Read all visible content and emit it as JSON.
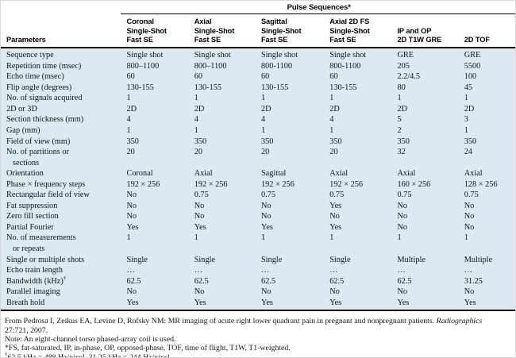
{
  "table": {
    "spanner_title": "Pulse Sequences*",
    "params_header": "Parameters",
    "columns": [
      "Coronal\nSingle-Shot\nFast SE",
      "Axial\nSingle-Shot\nFast SE",
      "Sagittal\nSingle-Shot\nFast SE",
      "Axial 2D FS\nSingle-Shot\nFast SE",
      "IP and OP\n2D T1W GRE",
      "2D TOF"
    ],
    "rows": [
      {
        "param": "Sequence type",
        "values": [
          "Single shot",
          "Single shot",
          "Single shot",
          "Single shot",
          "GRE",
          "GRE"
        ]
      },
      {
        "param": "Repetition time (msec)",
        "values": [
          "800–1100",
          "800–1100",
          "800-1100",
          "800-1100",
          "205",
          "5500"
        ]
      },
      {
        "param": "Echo time (msec)",
        "values": [
          "60",
          "60",
          "60",
          "60",
          "2.2/4.5",
          "100"
        ]
      },
      {
        "param": "Flip angle (degrees)",
        "values": [
          "130-155",
          "130-155",
          "130-155",
          "130-155",
          "80",
          "45"
        ]
      },
      {
        "param": "No. of signals acquired",
        "values": [
          "1",
          "1",
          "1",
          "1",
          "1",
          "1"
        ]
      },
      {
        "param": "2D or 3D",
        "values": [
          "2D",
          "2D",
          "2D",
          "2D",
          "2D",
          "2D"
        ]
      },
      {
        "param": "Section thickness (mm)",
        "values": [
          "4",
          "4",
          "4",
          "4",
          "5",
          "3"
        ]
      },
      {
        "param": "Gap (mm)",
        "values": [
          "1",
          "1",
          "1",
          "1",
          "2",
          "1"
        ]
      },
      {
        "param": "Field of view (mm)",
        "values": [
          "350",
          "350",
          "350",
          "350",
          "350",
          "350"
        ]
      },
      {
        "param": "No. of partitions or",
        "param2": "sections",
        "values": [
          "20",
          "20",
          "20",
          "20",
          "32",
          "24"
        ]
      },
      {
        "param": "Orientation",
        "values": [
          "Coronal",
          "Axial",
          "Sagittal",
          "Axial",
          "Axial",
          "Axial"
        ]
      },
      {
        "param": "Phase × frequency steps",
        "values": [
          "192 × 256",
          "192 × 256",
          "192 × 256",
          "192 × 256",
          "160 × 256",
          "128 × 256"
        ]
      },
      {
        "param": "Rectangular field of view",
        "values": [
          "No",
          "0.75",
          "0.75",
          "0.75",
          "0.75",
          "0.75"
        ]
      },
      {
        "param": "Fat suppression",
        "values": [
          "No",
          "No",
          "No",
          "Yes",
          "No",
          "No"
        ]
      },
      {
        "param": "Zero fill section",
        "values": [
          "No",
          "No",
          "No",
          "No",
          "No",
          "No"
        ]
      },
      {
        "param": "Partial Fourier",
        "values": [
          "Yes",
          "Yes",
          "Yes",
          "Yes",
          "No",
          "No"
        ]
      },
      {
        "param": "No. of measurements",
        "param2": "or repeats",
        "values": [
          "1",
          "1",
          "1",
          "1",
          "1",
          "1"
        ]
      },
      {
        "param": "Single or multiple shots",
        "values": [
          "Single",
          "Single",
          "Single",
          "Single",
          "Multiple",
          "Multiple"
        ]
      },
      {
        "param": "Echo train length",
        "values": [
          "…",
          "…",
          "…",
          "…",
          "…",
          "…"
        ]
      },
      {
        "param": "Bandwidth (kHz)",
        "param_sup": "†",
        "values": [
          "62.5",
          "62.5",
          "62.5",
          "62.5",
          "62.5",
          "31.25"
        ]
      },
      {
        "param": "Parallel imaging",
        "values": [
          "No",
          "No",
          "No",
          "No",
          "No",
          "No"
        ]
      },
      {
        "param": "Breath hold",
        "values": [
          "Yes",
          "Yes",
          "Yes",
          "Yes",
          "Yes",
          "Yes"
        ]
      }
    ]
  },
  "footnotes": [
    {
      "sup": "",
      "pre": "From Pedrosa I, Zeikus EA, Levine D, Rofsky NM: MR imaging of acute right lower quadrant pain in pregnant and nonpregnant patients. ",
      "italic": "Radiographics",
      "post": ""
    },
    {
      "sup": "",
      "pre": "27:721, 2007.",
      "italic": "",
      "post": ""
    },
    {
      "sup": "",
      "pre": "Note: An eight-channel torso phased-array coil is used.",
      "italic": "",
      "post": ""
    },
    {
      "sup": "",
      "pre": "*FS, fat-saturated, IP, in-phase, OP, opposed-phase, TOF, time of flight, T1W, T1-weighted.",
      "italic": "",
      "post": ""
    },
    {
      "sup": "†",
      "pre": "62.5 kHz = 488 Hz/pixel, 31.25 kHz = 244 Hz/pixel.",
      "italic": "",
      "post": ""
    }
  ]
}
